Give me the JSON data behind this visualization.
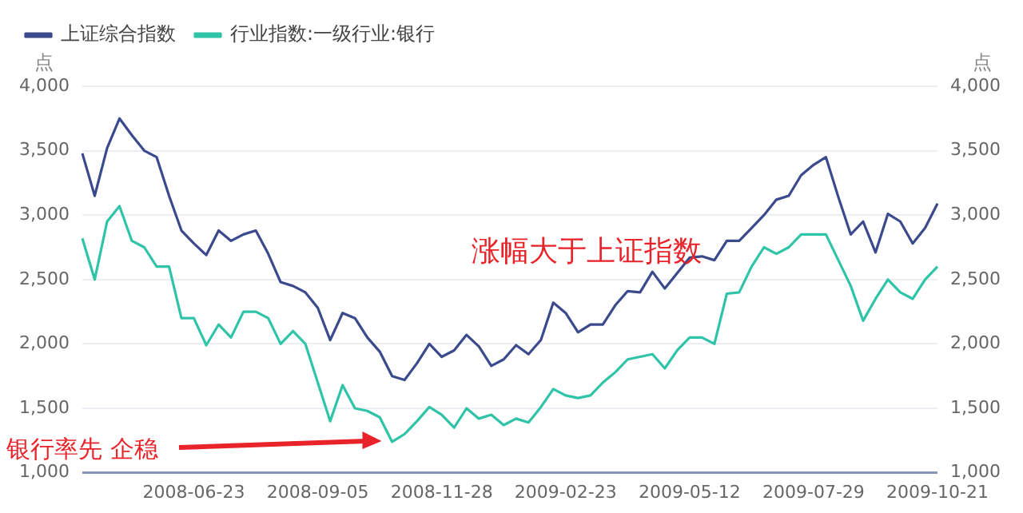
{
  "chart_data": {
    "type": "line",
    "legend": "top left",
    "grid": "y",
    "ylabel": "点",
    "y2label": "点",
    "marker": "none",
    "line_style": "solid",
    "categories": [
      null,
      null,
      null,
      null,
      null,
      null,
      null,
      null,
      null,
      "2008-06-23",
      null,
      null,
      null,
      null,
      null,
      null,
      null,
      null,
      null,
      "2008-09-05",
      null,
      null,
      null,
      null,
      null,
      null,
      null,
      null,
      null,
      "2008-11-28",
      null,
      null,
      null,
      null,
      null,
      null,
      null,
      null,
      null,
      "2009-02-23",
      null,
      null,
      null,
      null,
      null,
      null,
      null,
      null,
      null,
      "2009-05-12",
      null,
      null,
      null,
      null,
      null,
      null,
      null,
      null,
      null,
      "2009-07-29",
      null,
      null,
      null,
      null,
      null,
      null,
      null,
      null,
      null,
      "2009-10-21"
    ],
    "ylim": [
      1000,
      4000
    ],
    "yticks": [
      {
        "value": 1000,
        "label": "1,000"
      },
      {
        "value": 1500,
        "label": "1,500"
      },
      {
        "value": 2000,
        "label": "2,000"
      },
      {
        "value": 2500,
        "label": "2,500"
      },
      {
        "value": 3000,
        "label": "3,000"
      },
      {
        "value": 3500,
        "label": "3,500"
      },
      {
        "value": 4000,
        "label": "4,000"
      }
    ],
    "y2lim": [
      1000,
      4000
    ],
    "y2ticks": [
      {
        "value": 1000,
        "label": "1,000"
      },
      {
        "value": 1500,
        "label": "1,500"
      },
      {
        "value": 2000,
        "label": "2,000"
      },
      {
        "value": 2500,
        "label": "2,500"
      },
      {
        "value": 3000,
        "label": "3,000"
      },
      {
        "value": 3500,
        "label": "3,500"
      },
      {
        "value": 4000,
        "label": "4,000"
      }
    ],
    "series": [
      {
        "name": "上证综合指数",
        "color": "#3b4a8c",
        "values": [
          3480,
          3150,
          3520,
          3750,
          3620,
          3500,
          3450,
          3150,
          2880,
          2780,
          2690,
          2880,
          2800,
          2850,
          2880,
          2700,
          2480,
          2450,
          2400,
          2280,
          2030,
          2240,
          2200,
          2050,
          1940,
          1750,
          1720,
          1850,
          2000,
          1900,
          1950,
          2070,
          1980,
          1830,
          1880,
          1990,
          1920,
          2030,
          2320,
          2240,
          2090,
          2150,
          2150,
          2300,
          2410,
          2400,
          2560,
          2430,
          2550,
          2670,
          2680,
          2650,
          2800,
          2800,
          2900,
          3000,
          3120,
          3150,
          3310,
          3390,
          3450,
          3140,
          2850,
          2950,
          2710,
          3010,
          2950,
          2780,
          2900,
          3090
        ]
      },
      {
        "name": "行业指数:一级行业:银行",
        "color": "#2fc4a8",
        "values": [
          2820,
          2500,
          2950,
          3070,
          2800,
          2750,
          2600,
          2600,
          2200,
          2200,
          1990,
          2150,
          2050,
          2250,
          2250,
          2200,
          2000,
          2100,
          2000,
          1700,
          1400,
          1680,
          1500,
          1480,
          1430,
          1240,
          1300,
          1400,
          1510,
          1450,
          1350,
          1500,
          1420,
          1450,
          1370,
          1420,
          1390,
          1510,
          1650,
          1600,
          1580,
          1600,
          1700,
          1780,
          1880,
          1900,
          1920,
          1810,
          1950,
          2050,
          2050,
          2000,
          2390,
          2400,
          2600,
          2750,
          2700,
          2750,
          2850,
          2850,
          2850,
          2650,
          2450,
          2180,
          2350,
          2500,
          2400,
          2350,
          2500,
          2600
        ]
      }
    ],
    "annotations": [
      "涨幅大于上证指数",
      "银行率先 企稳"
    ]
  }
}
